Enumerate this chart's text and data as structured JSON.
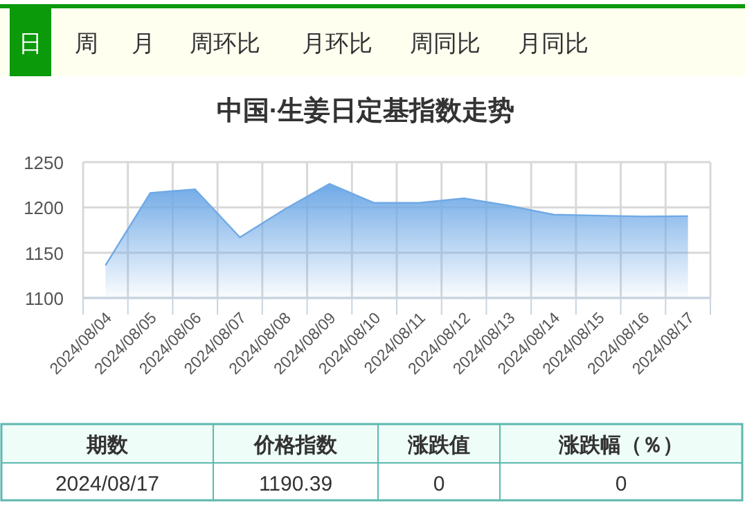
{
  "chart_data": {
    "type": "area",
    "title": "中国·生姜日定基指数走势",
    "categories": [
      "2024/08/04",
      "2024/08/05",
      "2024/08/06",
      "2024/08/07",
      "2024/08/08",
      "2024/08/09",
      "2024/08/10",
      "2024/08/11",
      "2024/08/12",
      "2024/08/13",
      "2024/08/14",
      "2024/08/15",
      "2024/08/16",
      "2024/08/17"
    ],
    "values": [
      1136,
      1216,
      1220,
      1167,
      1198,
      1226,
      1205,
      1205,
      1210,
      1202,
      1192,
      1191,
      1190,
      1190.39
    ],
    "color": "#6fa9e6",
    "ylim": [
      1100,
      1250
    ],
    "yticks": [
      1100,
      1150,
      1200,
      1250
    ],
    "grid": true,
    "annotations": [
      "日",
      "周",
      "月",
      "周环比",
      "月环比",
      "周同比",
      "月同比",
      "期数",
      "价格指数",
      "涨跌值",
      "涨跌幅（％）",
      "2024/08/17",
      "1190.39",
      "0",
      "0"
    ]
  }
}
